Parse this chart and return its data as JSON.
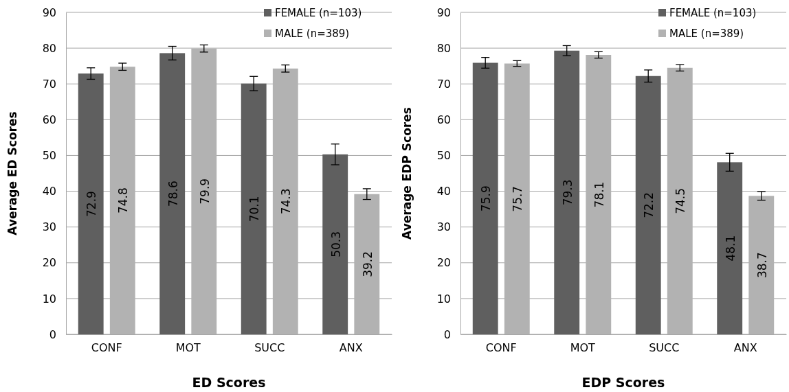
{
  "chart_data": [
    {
      "type": "bar",
      "xlabel": "ED Scores",
      "ylabel": "Average ED Scores",
      "categories": [
        "CONF",
        "MOT",
        "SUCC",
        "ANX"
      ],
      "ylim": [
        0,
        90
      ],
      "yticks": [
        0,
        10,
        20,
        30,
        40,
        50,
        60,
        70,
        80,
        90
      ],
      "grid": "y",
      "legend": "top right",
      "data_labels": true,
      "series": [
        {
          "name": "FEMALE (n=103)",
          "color": "#5f5f5f",
          "values": [
            72.9,
            78.6,
            70.1,
            50.3
          ],
          "errors": [
            1.6,
            1.9,
            2.0,
            2.9
          ]
        },
        {
          "name": "MALE (n=389)",
          "color": "#b2b2b2",
          "values": [
            74.8,
            79.9,
            74.3,
            39.2
          ],
          "errors": [
            1.0,
            1.0,
            1.0,
            1.5
          ]
        }
      ]
    },
    {
      "type": "bar",
      "xlabel": "EDP Scores",
      "ylabel": "Average EDP Scores",
      "categories": [
        "CONF",
        "MOT",
        "SUCC",
        "ANX"
      ],
      "ylim": [
        0,
        90
      ],
      "yticks": [
        0,
        10,
        20,
        30,
        40,
        50,
        60,
        70,
        80,
        90
      ],
      "grid": "y",
      "legend": "top right",
      "data_labels": true,
      "series": [
        {
          "name": "FEMALE (n=103)",
          "color": "#5f5f5f",
          "values": [
            75.9,
            79.3,
            72.2,
            48.1
          ],
          "errors": [
            1.5,
            1.4,
            1.7,
            2.5
          ]
        },
        {
          "name": "MALE (n=389)",
          "color": "#b2b2b2",
          "values": [
            75.7,
            78.1,
            74.5,
            38.7
          ],
          "errors": [
            0.8,
            0.9,
            0.9,
            1.2
          ]
        }
      ]
    }
  ]
}
